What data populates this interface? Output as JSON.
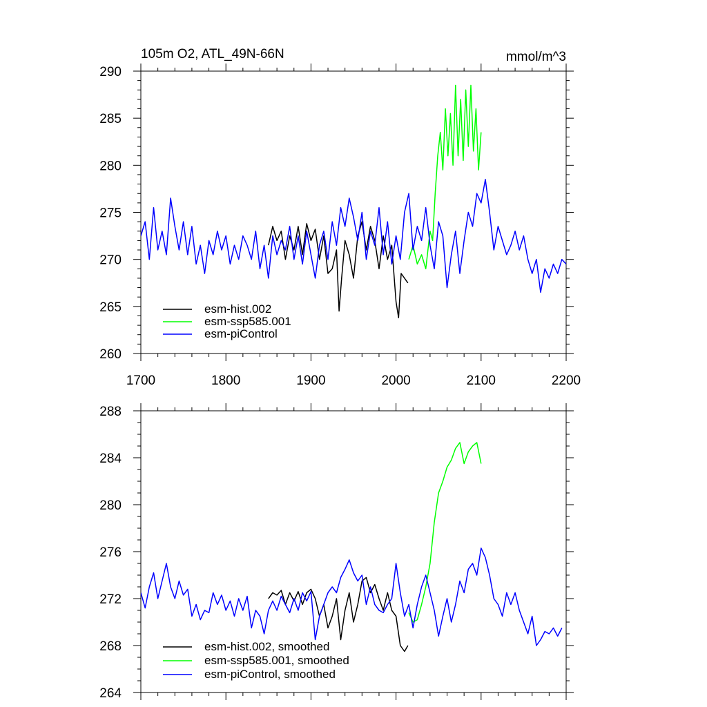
{
  "chart_data": [
    {
      "type": "line",
      "title": "105m O2, ATL_49N-66N",
      "units_label": "mmol/m^3",
      "xlim": [
        1700,
        2200
      ],
      "ylim": [
        260,
        290
      ],
      "xticks": [
        1700,
        1800,
        1900,
        2000,
        2100,
        2200
      ],
      "yticks": [
        260,
        265,
        270,
        275,
        280,
        285,
        290
      ],
      "xminor": 20,
      "yminor": 1,
      "show_x_labels": true,
      "legend": {
        "placement": "bottom-left"
      },
      "series": [
        {
          "name": "esm-hist.002",
          "color": "#000000",
          "x": [
            1850,
            1855,
            1860,
            1865,
            1870,
            1875,
            1880,
            1885,
            1890,
            1895,
            1900,
            1905,
            1910,
            1915,
            1920,
            1925,
            1930,
            1933,
            1936,
            1940,
            1945,
            1950,
            1955,
            1960,
            1965,
            1970,
            1975,
            1980,
            1985,
            1990,
            1995,
            2000,
            2003,
            2006,
            2010,
            2014
          ],
          "y": [
            271.5,
            273.5,
            272.0,
            273.0,
            270.0,
            272.5,
            271.0,
            273.5,
            270.5,
            273.8,
            272.0,
            273.2,
            270.0,
            272.5,
            268.5,
            269.0,
            271.0,
            264.5,
            268.0,
            272.0,
            270.5,
            268.0,
            272.5,
            274.0,
            271.0,
            273.5,
            272.0,
            269.0,
            272.5,
            270.0,
            271.5,
            265.5,
            263.8,
            268.5,
            268.0,
            267.5
          ]
        },
        {
          "name": "esm-ssp585.001",
          "color": "#00ff00",
          "x": [
            2015,
            2020,
            2025,
            2030,
            2035,
            2040,
            2043,
            2046,
            2049,
            2052,
            2055,
            2058,
            2061,
            2064,
            2067,
            2070,
            2073,
            2076,
            2079,
            2082,
            2085,
            2088,
            2091,
            2094,
            2097,
            2100
          ],
          "y": [
            270.0,
            271.5,
            269.5,
            270.5,
            269.0,
            273.0,
            272.0,
            277.0,
            281.0,
            283.5,
            279.5,
            286.0,
            281.0,
            285.5,
            280.0,
            288.5,
            281.0,
            287.0,
            280.5,
            288.0,
            282.0,
            288.5,
            281.5,
            286.0,
            279.5,
            283.5
          ]
        },
        {
          "name": "esm-piControl",
          "color": "#0000ff",
          "x": [
            1700,
            1705,
            1710,
            1715,
            1720,
            1725,
            1730,
            1735,
            1740,
            1745,
            1750,
            1755,
            1760,
            1765,
            1770,
            1775,
            1780,
            1785,
            1790,
            1795,
            1800,
            1805,
            1810,
            1815,
            1820,
            1825,
            1830,
            1835,
            1840,
            1845,
            1850,
            1855,
            1860,
            1865,
            1870,
            1875,
            1880,
            1885,
            1890,
            1895,
            1900,
            1905,
            1910,
            1915,
            1920,
            1925,
            1930,
            1935,
            1940,
            1945,
            1950,
            1955,
            1960,
            1965,
            1970,
            1975,
            1980,
            1985,
            1990,
            1995,
            2000,
            2005,
            2010,
            2015,
            2020,
            2025,
            2030,
            2035,
            2040,
            2045,
            2050,
            2055,
            2060,
            2065,
            2070,
            2075,
            2080,
            2085,
            2090,
            2095,
            2100,
            2105,
            2110,
            2115,
            2120,
            2125,
            2130,
            2135,
            2140,
            2145,
            2150,
            2155,
            2160,
            2165,
            2170,
            2175,
            2180,
            2185,
            2190,
            2195,
            2200
          ],
          "y": [
            272.5,
            274.0,
            270.0,
            275.5,
            271.0,
            273.0,
            270.5,
            276.5,
            273.5,
            271.0,
            274.0,
            270.5,
            273.5,
            269.5,
            271.5,
            268.5,
            272.0,
            270.5,
            273.0,
            271.0,
            272.5,
            269.5,
            271.5,
            270.0,
            272.5,
            271.5,
            270.0,
            273.0,
            269.0,
            271.5,
            268.0,
            272.5,
            270.5,
            272.0,
            271.0,
            273.5,
            270.0,
            272.5,
            269.5,
            273.0,
            270.5,
            268.0,
            271.5,
            273.0,
            270.0,
            274.0,
            271.5,
            275.5,
            273.5,
            276.5,
            274.5,
            272.0,
            275.0,
            270.0,
            273.0,
            271.5,
            275.5,
            270.5,
            274.0,
            269.5,
            272.5,
            270.0,
            275.0,
            277.0,
            271.0,
            273.5,
            272.0,
            275.5,
            271.5,
            269.0,
            274.0,
            272.5,
            267.0,
            270.5,
            273.0,
            268.5,
            272.0,
            275.0,
            273.5,
            277.0,
            276.0,
            278.5,
            275.0,
            271.0,
            273.5,
            272.0,
            270.5,
            271.5,
            273.0,
            271.0,
            272.5,
            270.0,
            268.5,
            270.0,
            266.5,
            269.0,
            268.0,
            269.5,
            268.5,
            270.0,
            269.5
          ]
        }
      ]
    },
    {
      "type": "line",
      "title": "",
      "units_label": "",
      "xlim": [
        1700,
        2200
      ],
      "ylim": [
        264,
        288
      ],
      "xticks": [
        1700,
        1800,
        1900,
        2000,
        2100,
        2200
      ],
      "yticks": [
        264,
        268,
        272,
        276,
        280,
        284,
        288
      ],
      "xminor": 20,
      "yminor": 1,
      "show_x_labels": false,
      "legend": {
        "placement": "bottom-left"
      },
      "series": [
        {
          "name": "esm-hist.002, smoothed",
          "color": "#000000",
          "x": [
            1850,
            1855,
            1860,
            1865,
            1870,
            1875,
            1880,
            1885,
            1890,
            1895,
            1900,
            1905,
            1910,
            1915,
            1920,
            1925,
            1930,
            1935,
            1940,
            1945,
            1950,
            1955,
            1960,
            1965,
            1970,
            1975,
            1980,
            1985,
            1990,
            1995,
            2000,
            2005,
            2010,
            2014
          ],
          "y": [
            272.0,
            272.5,
            272.3,
            272.7,
            271.5,
            272.5,
            271.8,
            272.6,
            271.5,
            272.5,
            272.8,
            272.0,
            270.5,
            271.5,
            269.5,
            270.5,
            272.0,
            268.5,
            271.0,
            272.5,
            270.0,
            271.5,
            273.5,
            273.8,
            272.5,
            273.2,
            272.0,
            271.0,
            272.5,
            271.0,
            270.5,
            268.0,
            267.5,
            268.0
          ]
        },
        {
          "name": "esm-ssp585.001, smoothed",
          "color": "#00ff00",
          "x": [
            2015,
            2020,
            2025,
            2030,
            2035,
            2040,
            2045,
            2050,
            2055,
            2060,
            2065,
            2070,
            2075,
            2080,
            2085,
            2090,
            2095,
            2100
          ],
          "y": [
            270.8,
            270.0,
            270.2,
            271.5,
            273.0,
            275.0,
            278.5,
            281.0,
            282.0,
            283.2,
            283.8,
            284.8,
            285.3,
            283.5,
            284.5,
            285.0,
            285.3,
            283.5
          ]
        },
        {
          "name": "esm-piControl, smoothed",
          "color": "#0000ff",
          "x": [
            1700,
            1705,
            1710,
            1715,
            1720,
            1725,
            1730,
            1735,
            1740,
            1745,
            1750,
            1755,
            1760,
            1765,
            1770,
            1775,
            1780,
            1785,
            1790,
            1795,
            1800,
            1805,
            1810,
            1815,
            1820,
            1825,
            1830,
            1835,
            1840,
            1845,
            1850,
            1855,
            1860,
            1865,
            1870,
            1875,
            1880,
            1885,
            1890,
            1895,
            1900,
            1905,
            1910,
            1915,
            1920,
            1925,
            1930,
            1935,
            1940,
            1945,
            1950,
            1955,
            1960,
            1965,
            1970,
            1975,
            1980,
            1985,
            1990,
            1995,
            2000,
            2005,
            2010,
            2015,
            2020,
            2025,
            2030,
            2035,
            2040,
            2045,
            2050,
            2055,
            2060,
            2065,
            2070,
            2075,
            2080,
            2085,
            2090,
            2095,
            2100,
            2105,
            2110,
            2115,
            2120,
            2125,
            2130,
            2135,
            2140,
            2145,
            2150,
            2155,
            2160,
            2165,
            2170,
            2175,
            2180,
            2185,
            2190,
            2195
          ],
          "y": [
            272.5,
            271.2,
            273.0,
            274.2,
            272.0,
            273.5,
            275.0,
            273.0,
            272.0,
            273.5,
            272.3,
            272.8,
            270.5,
            271.5,
            270.2,
            271.0,
            270.8,
            272.5,
            271.5,
            272.3,
            271.0,
            271.8,
            270.5,
            272.0,
            271.0,
            272.2,
            269.5,
            271.0,
            270.5,
            269.0,
            271.0,
            271.8,
            271.0,
            272.2,
            271.5,
            270.8,
            272.0,
            271.0,
            272.5,
            271.8,
            272.6,
            268.5,
            270.5,
            271.5,
            272.5,
            273.0,
            272.5,
            273.8,
            274.5,
            275.3,
            274.2,
            273.5,
            274.0,
            271.5,
            273.0,
            271.5,
            271.0,
            270.8,
            271.5,
            272.0,
            275.0,
            272.5,
            270.5,
            271.5,
            269.5,
            271.5,
            273.0,
            274.0,
            272.5,
            271.0,
            268.8,
            270.5,
            272.0,
            270.0,
            271.5,
            273.5,
            272.5,
            274.5,
            275.0,
            274.0,
            276.3,
            275.5,
            274.0,
            272.0,
            271.5,
            270.5,
            272.5,
            271.5,
            272.5,
            271.0,
            270.0,
            269.0,
            270.5,
            268.0,
            268.5,
            269.2,
            269.0,
            269.5,
            268.8,
            269.5
          ]
        }
      ]
    }
  ]
}
